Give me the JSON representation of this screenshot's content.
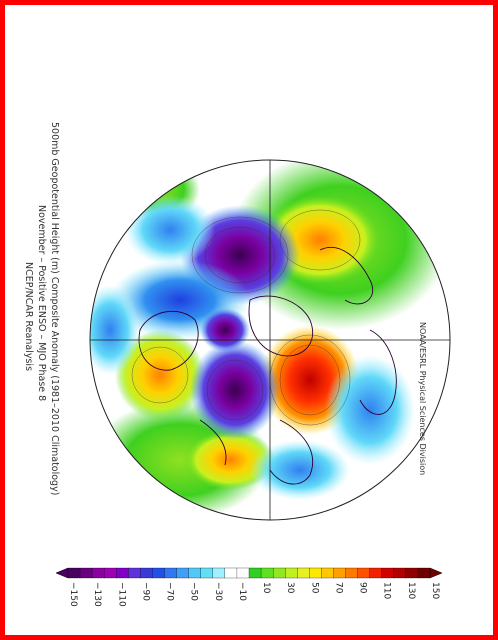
{
  "title": {
    "line1": "500mb Geopotential Height (m) Composite Anomaly (1981–2010 Climatology)",
    "line2": "November – Positive ENSO – MJO Phase 8",
    "line3": "NCEP/NCAR Reanalysis"
  },
  "credit": "NOAA/ESRL Physical Sciences Division",
  "colorbar": {
    "labels": [
      "−150",
      "−130",
      "−110",
      "−90",
      "−70",
      "−50",
      "−30",
      "−10",
      "10",
      "30",
      "50",
      "70",
      "90",
      "110",
      "130",
      "150"
    ],
    "colors": [
      "#4a0060",
      "#6a0080",
      "#8a00a0",
      "#a000b4",
      "#8000c8",
      "#6030d8",
      "#3a3ad8",
      "#2050e8",
      "#3078f0",
      "#40a0f8",
      "#50c8f8",
      "#60e0f8",
      "#a0f0ff",
      "#ffffff",
      "#ffffff",
      "#30d020",
      "#60e020",
      "#90e820",
      "#c0f020",
      "#e8f020",
      "#ffe800",
      "#ffc800",
      "#ffa000",
      "#ff7800",
      "#ff5000",
      "#f02000",
      "#d00000",
      "#b00000",
      "#900000",
      "#700000"
    ]
  }
}
